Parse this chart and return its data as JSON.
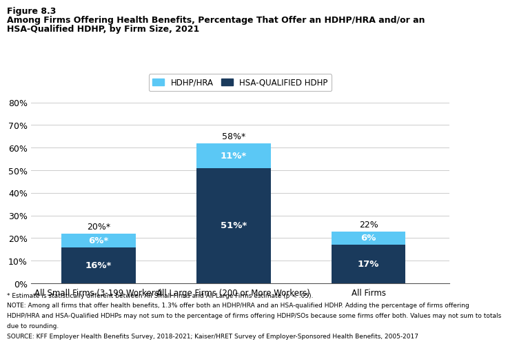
{
  "figure_label": "Figure 8.3",
  "title_line1": "Among Firms Offering Health Benefits, Percentage That Offer an HDHP/HRA and/or an",
  "title_line2": "HSA-Qualified HDHP, by Firm Size, 2021",
  "categories": [
    "All Small Firms (3-199 Workers)",
    "All Large Firms (200 or More Workers)",
    "All Firms"
  ],
  "hsa_values": [
    16,
    51,
    17
  ],
  "hdhp_values": [
    6,
    11,
    6
  ],
  "hsa_labels": [
    "16%*",
    "51%*",
    "17%"
  ],
  "hdhp_labels": [
    "6%*",
    "11%*",
    "6%"
  ],
  "total_labels": [
    "20%*",
    "58%*",
    "22%"
  ],
  "color_hsa": "#1a3a5c",
  "color_hdhp": "#5bc8f5",
  "ylim": [
    0,
    80
  ],
  "yticks": [
    0,
    10,
    20,
    30,
    40,
    50,
    60,
    70,
    80
  ],
  "legend_labels": [
    "HDHP/HRA",
    "HSA-QUALIFIED HDHP"
  ],
  "bar_width": 0.55,
  "bar_positions": [
    1,
    2,
    3
  ],
  "footnote1": "* Estimate is statistically different between All Small Firms and All Large Firms estimate (p < .05).",
  "footnote2": "NOTE: Among all firms that offer health benefits, 1.3% offer both an HDHP/HRA and an HSA-qualified HDHP. Adding the percentage of firms offering",
  "footnote3": "HDHP/HRA and HSA-Qualified HDHPs may not sum to the percentage of firms offering HDHP/SOs because some firms offer both. Values may not sum to totals",
  "footnote4": "due to rounding.",
  "footnote5": "SOURCE: KFF Employer Health Benefits Survey, 2018-2021; Kaiser/HRET Survey of Employer-Sponsored Health Benefits, 2005-2017",
  "background_color": "#ffffff"
}
